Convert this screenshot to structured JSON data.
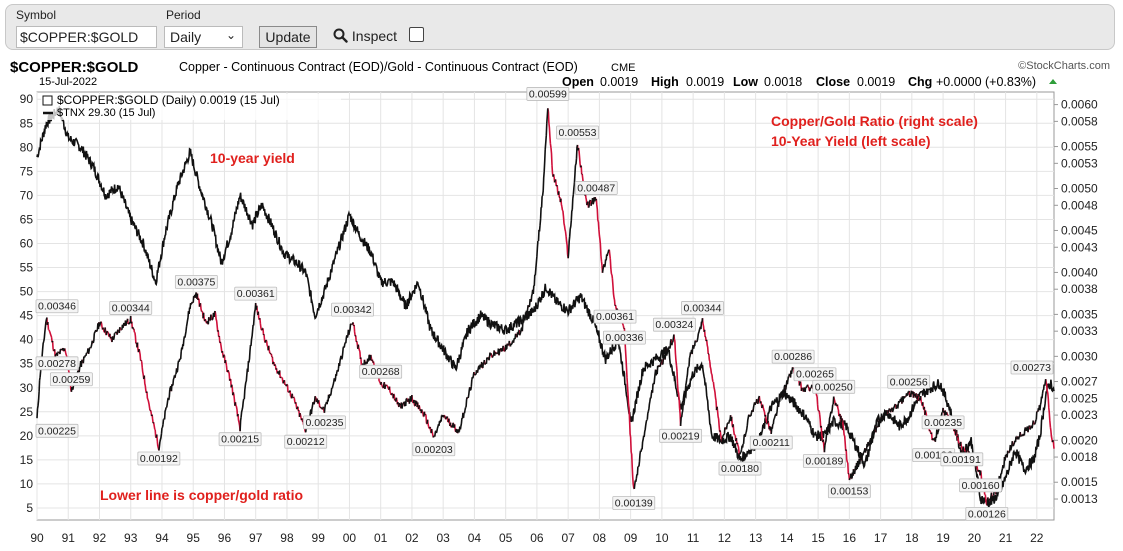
{
  "toolbar": {
    "symbol_label": "Symbol",
    "symbol_value": "$COPPER:$GOLD",
    "period_label": "Period",
    "period_value": "Daily",
    "update_label": "Update",
    "inspect_label": "Inspect"
  },
  "header": {
    "symbol": "$COPPER:$GOLD",
    "description": "Copper - Continuous Contract (EOD)/Gold - Continuous Contract (EOD)",
    "exchange": "CME",
    "source": "©StockCharts.com",
    "date": "15-Jul-2022",
    "open_label": "Open",
    "open": "0.0019",
    "high_label": "High",
    "high": "0.0019",
    "low_label": "Low",
    "low": "0.0018",
    "close_label": "Close",
    "close": "0.0019",
    "chg_label": "Chg",
    "chg": "+0.0000 (+0.83%)",
    "legend1": "$COPPER:$GOLD (Daily) 0.0019 (15 Jul)",
    "legend2": "$TNX 29.30 (15 Jul)"
  },
  "annotations": {
    "ratio_title": "Copper/Gold Ratio (right scale)",
    "yield_title": "10-Year Yield (left scale)",
    "yield_label": "10-year yield",
    "lower_note": "Lower line is copper/gold ratio"
  },
  "colors": {
    "annotation_red": "#e0201d",
    "price_up": "#111111",
    "price_down": "#d0103a",
    "grid": "#e4e4e4",
    "chg_green": "#2e9e3a"
  },
  "chart_data": {
    "type": "line",
    "x_ticks": [
      "90",
      "91",
      "92",
      "93",
      "94",
      "95",
      "96",
      "97",
      "98",
      "99",
      "00",
      "01",
      "02",
      "03",
      "04",
      "05",
      "06",
      "07",
      "08",
      "09",
      "10",
      "11",
      "12",
      "13",
      "14",
      "15",
      "16",
      "17",
      "18",
      "19",
      "20",
      "21",
      "22"
    ],
    "left_axis": {
      "label": "",
      "ticks": [
        5,
        10,
        15,
        20,
        25,
        30,
        35,
        40,
        45,
        50,
        55,
        60,
        65,
        70,
        75,
        80,
        85,
        90
      ],
      "range": [
        2.5,
        91.5
      ]
    },
    "right_axis": {
      "label": "",
      "ticks": [
        "0.0013",
        "0.0015",
        "0.0018",
        "0.0020",
        "0.0023",
        "0.0025",
        "0.0027",
        "0.0030",
        "0.0033",
        "0.0035",
        "0.0038",
        "0.0040",
        "0.0043",
        "0.0045",
        "0.0048",
        "0.0050",
        "0.0053",
        "0.0055",
        "0.0058",
        "0.0060"
      ],
      "range": [
        0.00105,
        0.00615
      ]
    },
    "series": [
      {
        "name": "$COPPER:$GOLD",
        "axis": "right",
        "points": [
          [
            1990.0,
            0.00225
          ],
          [
            1990.1,
            0.00278
          ],
          [
            1990.3,
            0.00346
          ],
          [
            1990.6,
            0.003
          ],
          [
            1990.9,
            0.0031
          ],
          [
            1991.1,
            0.00259
          ],
          [
            1991.4,
            0.0029
          ],
          [
            1991.7,
            0.0031
          ],
          [
            1992.0,
            0.0034
          ],
          [
            1992.4,
            0.0032
          ],
          [
            1992.7,
            0.00335
          ],
          [
            1993.0,
            0.00344
          ],
          [
            1993.3,
            0.003
          ],
          [
            1993.6,
            0.0024
          ],
          [
            1993.9,
            0.00192
          ],
          [
            1994.2,
            0.0025
          ],
          [
            1994.6,
            0.003
          ],
          [
            1994.9,
            0.0036
          ],
          [
            1995.1,
            0.00375
          ],
          [
            1995.4,
            0.0034
          ],
          [
            1995.7,
            0.0035
          ],
          [
            1995.9,
            0.0031
          ],
          [
            1996.2,
            0.0027
          ],
          [
            1996.5,
            0.00215
          ],
          [
            1996.8,
            0.003
          ],
          [
            1997.0,
            0.00361
          ],
          [
            1997.3,
            0.0032
          ],
          [
            1997.6,
            0.0029
          ],
          [
            1997.9,
            0.0027
          ],
          [
            1998.2,
            0.0025
          ],
          [
            1998.6,
            0.00212
          ],
          [
            1998.9,
            0.0025
          ],
          [
            1999.2,
            0.00235
          ],
          [
            1999.6,
            0.0028
          ],
          [
            1999.9,
            0.0032
          ],
          [
            2000.1,
            0.00342
          ],
          [
            2000.4,
            0.0029
          ],
          [
            2000.7,
            0.003
          ],
          [
            2001.0,
            0.00268
          ],
          [
            2001.3,
            0.0026
          ],
          [
            2001.6,
            0.0024
          ],
          [
            2002.0,
            0.0025
          ],
          [
            2002.4,
            0.0023
          ],
          [
            2002.7,
            0.00203
          ],
          [
            2003.0,
            0.0023
          ],
          [
            2003.5,
            0.0021
          ],
          [
            2004.0,
            0.0028
          ],
          [
            2004.5,
            0.003
          ],
          [
            2005.0,
            0.0031
          ],
          [
            2005.5,
            0.0033
          ],
          [
            2005.9,
            0.0038
          ],
          [
            2006.2,
            0.005
          ],
          [
            2006.35,
            0.00599
          ],
          [
            2006.5,
            0.0052
          ],
          [
            2006.8,
            0.0048
          ],
          [
            2007.0,
            0.0042
          ],
          [
            2007.3,
            0.00553
          ],
          [
            2007.6,
            0.0048
          ],
          [
            2007.9,
            0.00487
          ],
          [
            2008.1,
            0.004
          ],
          [
            2008.3,
            0.0043
          ],
          [
            2008.5,
            0.00361
          ],
          [
            2008.8,
            0.00336
          ],
          [
            2009.0,
            0.002
          ],
          [
            2009.1,
            0.00139
          ],
          [
            2009.4,
            0.002
          ],
          [
            2009.8,
            0.0028
          ],
          [
            2010.1,
            0.003
          ],
          [
            2010.4,
            0.00324
          ],
          [
            2010.6,
            0.00219
          ],
          [
            2010.9,
            0.003
          ],
          [
            2011.2,
            0.0033
          ],
          [
            2011.3,
            0.00344
          ],
          [
            2011.6,
            0.0028
          ],
          [
            2011.9,
            0.002
          ],
          [
            2012.2,
            0.0023
          ],
          [
            2012.5,
            0.0018
          ],
          [
            2012.8,
            0.0023
          ],
          [
            2013.1,
            0.0025
          ],
          [
            2013.5,
            0.00211
          ],
          [
            2013.8,
            0.0025
          ],
          [
            2014.2,
            0.00286
          ],
          [
            2014.5,
            0.0026
          ],
          [
            2014.9,
            0.00265
          ],
          [
            2015.2,
            0.00189
          ],
          [
            2015.5,
            0.0025
          ],
          [
            2015.8,
            0.0022
          ],
          [
            2016.0,
            0.00153
          ],
          [
            2016.4,
            0.0018
          ],
          [
            2016.8,
            0.0021
          ],
          [
            2017.1,
            0.0023
          ],
          [
            2017.5,
            0.0024
          ],
          [
            2017.9,
            0.00256
          ],
          [
            2018.3,
            0.0025
          ],
          [
            2018.7,
            0.00196
          ],
          [
            2019.0,
            0.00235
          ],
          [
            2019.3,
            0.0022
          ],
          [
            2019.6,
            0.00191
          ],
          [
            2019.9,
            0.0018
          ],
          [
            2020.2,
            0.0016
          ],
          [
            2020.4,
            0.00126
          ],
          [
            2020.7,
            0.0014
          ],
          [
            2021.0,
            0.0018
          ],
          [
            2021.3,
            0.002
          ],
          [
            2021.6,
            0.0021
          ],
          [
            2021.9,
            0.0022
          ],
          [
            2022.1,
            0.0024
          ],
          [
            2022.3,
            0.00273
          ],
          [
            2022.45,
            0.0021
          ],
          [
            2022.55,
            0.0019
          ]
        ],
        "labels": [
          [
            1990.1,
            0.00346,
            "0.00346"
          ],
          [
            1989.9,
            0.00278,
            "0.00278"
          ],
          [
            1989.9,
            0.00225,
            "0.00225"
          ],
          [
            1991.1,
            0.00259,
            "0.00259"
          ],
          [
            1993.0,
            0.00344,
            "0.00344"
          ],
          [
            1993.9,
            0.00192,
            "0.00192"
          ],
          [
            1995.1,
            0.00375,
            "0.00375"
          ],
          [
            1996.5,
            0.00215,
            "0.00215"
          ],
          [
            1997.0,
            0.00361,
            "0.00361"
          ],
          [
            1998.6,
            0.00212,
            "0.00212"
          ],
          [
            1999.2,
            0.00235,
            "0.00235"
          ],
          [
            2000.1,
            0.00342,
            "0.00342"
          ],
          [
            2001.0,
            0.00268,
            "0.00268"
          ],
          [
            2002.7,
            0.00203,
            "0.00203"
          ],
          [
            2006.35,
            0.00599,
            "0.00599"
          ],
          [
            2007.3,
            0.00553,
            "0.00553"
          ],
          [
            2007.9,
            0.00487,
            "0.00487"
          ],
          [
            2008.5,
            0.00361,
            "0.00361"
          ],
          [
            2008.8,
            0.00336,
            "0.00336"
          ],
          [
            2009.1,
            0.00139,
            "0.00139"
          ],
          [
            2010.4,
            0.00324,
            "0.00324"
          ],
          [
            2010.6,
            0.00219,
            "0.00219"
          ],
          [
            2011.3,
            0.00344,
            "0.00344"
          ],
          [
            2012.5,
            0.0018,
            "0.00180"
          ],
          [
            2013.5,
            0.00211,
            "0.00211"
          ],
          [
            2014.2,
            0.00286,
            "0.00286"
          ],
          [
            2014.9,
            0.00265,
            "0.00265"
          ],
          [
            2015.2,
            0.00189,
            "0.00189"
          ],
          [
            2015.5,
            0.0025,
            "0.00250"
          ],
          [
            2016.0,
            0.00153,
            "0.00153"
          ],
          [
            2017.9,
            0.00256,
            "0.00256"
          ],
          [
            2018.7,
            0.00196,
            "0.00196"
          ],
          [
            2019.0,
            0.00235,
            "0.00235"
          ],
          [
            2019.6,
            0.00191,
            "0.00191"
          ],
          [
            2020.2,
            0.0016,
            "0.00160"
          ],
          [
            2020.4,
            0.00126,
            "0.00126"
          ],
          [
            2022.3,
            0.00273,
            "0.00273"
          ]
        ]
      },
      {
        "name": "$TNX",
        "axis": "left",
        "points": [
          [
            1990.0,
            78
          ],
          [
            1990.3,
            85
          ],
          [
            1990.7,
            88
          ],
          [
            1991.0,
            82
          ],
          [
            1991.4,
            80
          ],
          [
            1991.8,
            76
          ],
          [
            1992.2,
            70
          ],
          [
            1992.6,
            72
          ],
          [
            1993.0,
            65
          ],
          [
            1993.4,
            60
          ],
          [
            1993.8,
            52
          ],
          [
            1994.1,
            62
          ],
          [
            1994.5,
            72
          ],
          [
            1994.9,
            79
          ],
          [
            1995.2,
            72
          ],
          [
            1995.6,
            64
          ],
          [
            1995.9,
            56
          ],
          [
            1996.2,
            62
          ],
          [
            1996.5,
            70
          ],
          [
            1996.9,
            64
          ],
          [
            1997.2,
            68
          ],
          [
            1997.5,
            64
          ],
          [
            1997.9,
            58
          ],
          [
            1998.3,
            56
          ],
          [
            1998.6,
            54
          ],
          [
            1998.9,
            45
          ],
          [
            1999.2,
            50
          ],
          [
            1999.6,
            58
          ],
          [
            2000.0,
            66
          ],
          [
            2000.3,
            62
          ],
          [
            2000.7,
            58
          ],
          [
            2001.0,
            52
          ],
          [
            2001.4,
            52
          ],
          [
            2001.8,
            47
          ],
          [
            2002.2,
            52
          ],
          [
            2002.6,
            42
          ],
          [
            2003.0,
            38
          ],
          [
            2003.4,
            34
          ],
          [
            2003.8,
            42
          ],
          [
            2004.2,
            45
          ],
          [
            2004.6,
            43
          ],
          [
            2005.0,
            42
          ],
          [
            2005.5,
            44
          ],
          [
            2005.9,
            46
          ],
          [
            2006.3,
            51
          ],
          [
            2006.6,
            48
          ],
          [
            2007.0,
            46
          ],
          [
            2007.4,
            49
          ],
          [
            2007.8,
            44
          ],
          [
            2008.2,
            36
          ],
          [
            2008.6,
            40
          ],
          [
            2008.9,
            28
          ],
          [
            2009.0,
            22
          ],
          [
            2009.4,
            34
          ],
          [
            2009.8,
            36
          ],
          [
            2010.2,
            38
          ],
          [
            2010.6,
            26
          ],
          [
            2011.0,
            33
          ],
          [
            2011.3,
            35
          ],
          [
            2011.6,
            20
          ],
          [
            2011.9,
            19
          ],
          [
            2012.2,
            20
          ],
          [
            2012.5,
            15
          ],
          [
            2012.8,
            17
          ],
          [
            2013.1,
            19
          ],
          [
            2013.5,
            26
          ],
          [
            2013.9,
            29
          ],
          [
            2014.2,
            27
          ],
          [
            2014.6,
            24
          ],
          [
            2014.9,
            20
          ],
          [
            2015.2,
            20
          ],
          [
            2015.5,
            23
          ],
          [
            2015.9,
            22
          ],
          [
            2016.2,
            18
          ],
          [
            2016.5,
            14
          ],
          [
            2016.9,
            23
          ],
          [
            2017.2,
            25
          ],
          [
            2017.6,
            22
          ],
          [
            2017.9,
            24
          ],
          [
            2018.2,
            28
          ],
          [
            2018.6,
            30
          ],
          [
            2018.9,
            31
          ],
          [
            2019.2,
            26
          ],
          [
            2019.6,
            16
          ],
          [
            2019.9,
            19
          ],
          [
            2020.2,
            7
          ],
          [
            2020.5,
            6
          ],
          [
            2020.8,
            8
          ],
          [
            2021.1,
            13
          ],
          [
            2021.3,
            17
          ],
          [
            2021.6,
            13
          ],
          [
            2021.9,
            15
          ],
          [
            2022.1,
            20
          ],
          [
            2022.3,
            29
          ],
          [
            2022.45,
            31
          ],
          [
            2022.55,
            29.3
          ]
        ]
      }
    ],
    "grid": true,
    "legend_position": "top-left"
  }
}
